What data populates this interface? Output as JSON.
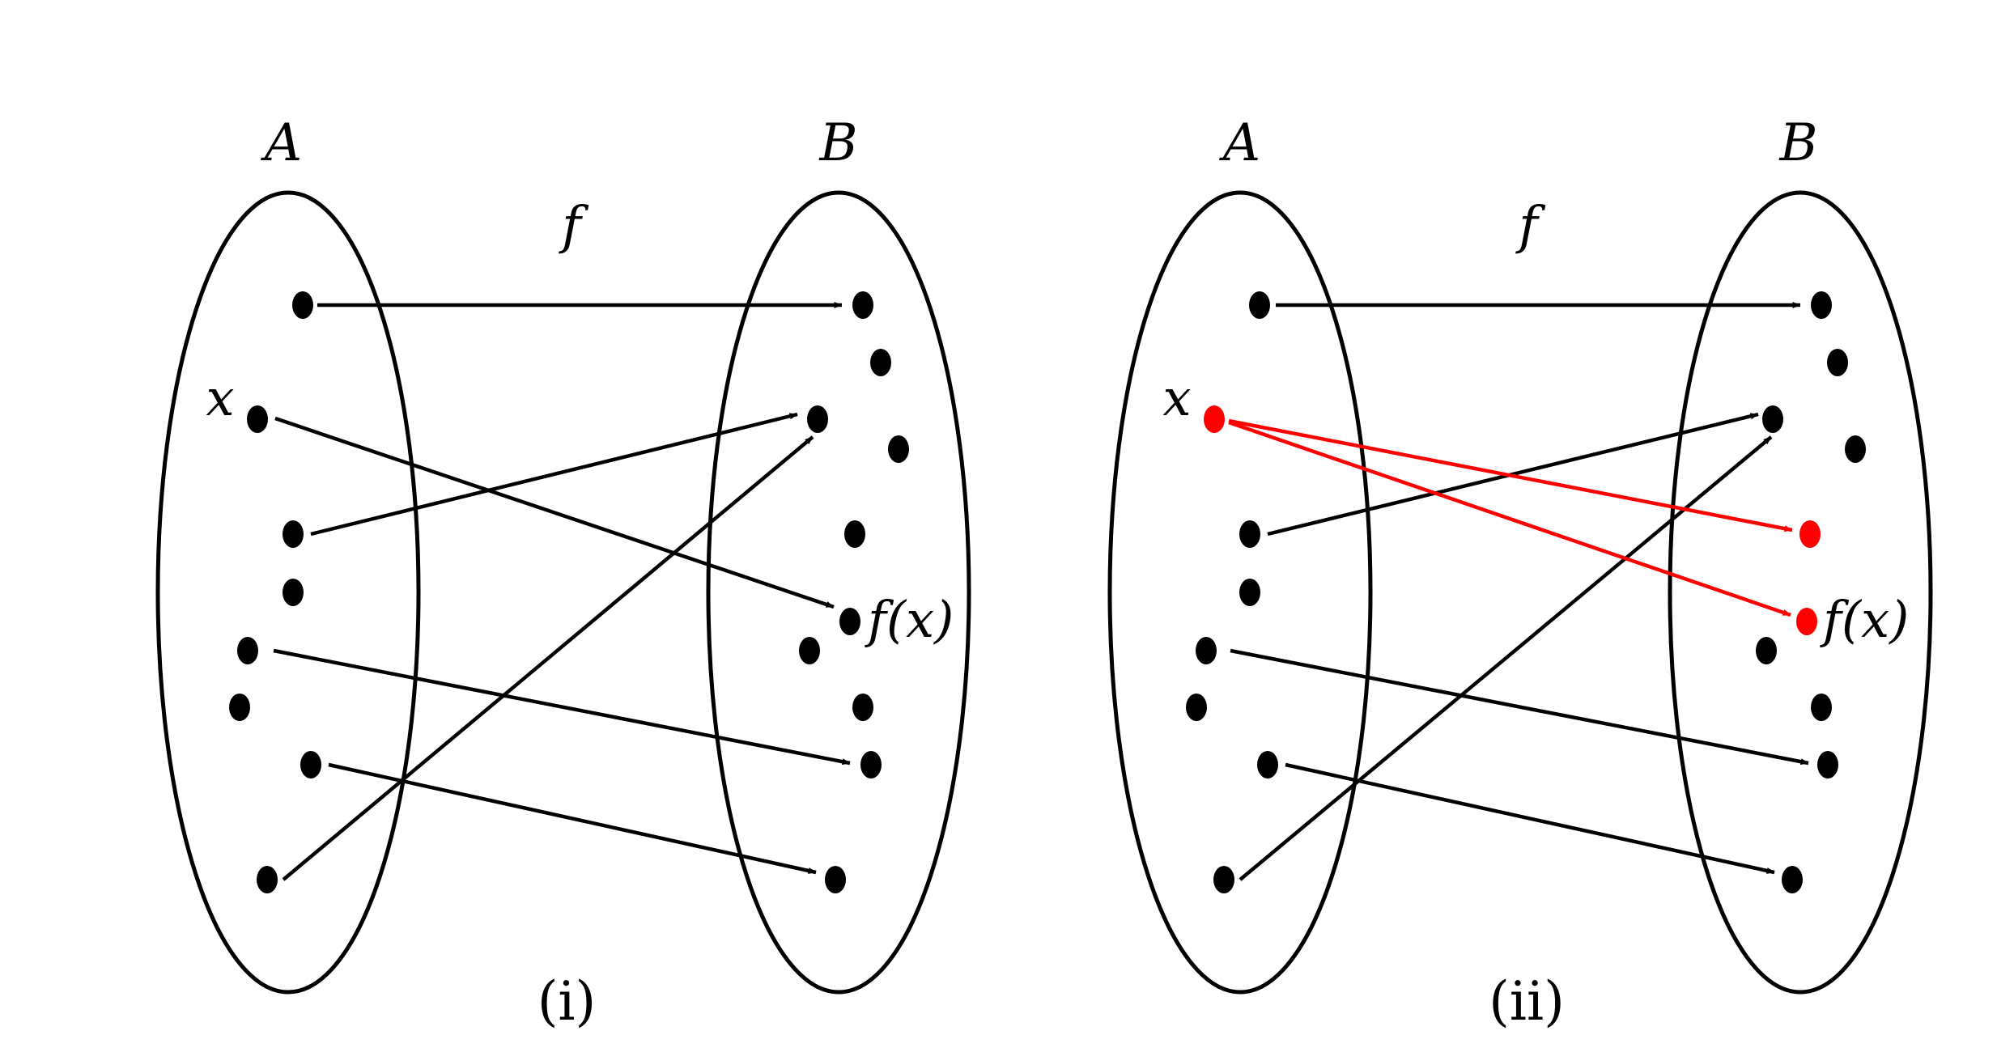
{
  "colors": {
    "ink": "#000000",
    "highlight": "#ff0000",
    "background": "#ffffff"
  },
  "panel_i": {
    "set_a_label": "A",
    "set_b_label": "B",
    "function_label": "f",
    "element_label": "x",
    "image_label": "f(x)",
    "caption": "(i)"
  },
  "panel_ii": {
    "set_a_label": "A",
    "set_b_label": "B",
    "function_label": "f",
    "element_label": "x",
    "image_label": "f(x)",
    "caption": "(ii)"
  }
}
